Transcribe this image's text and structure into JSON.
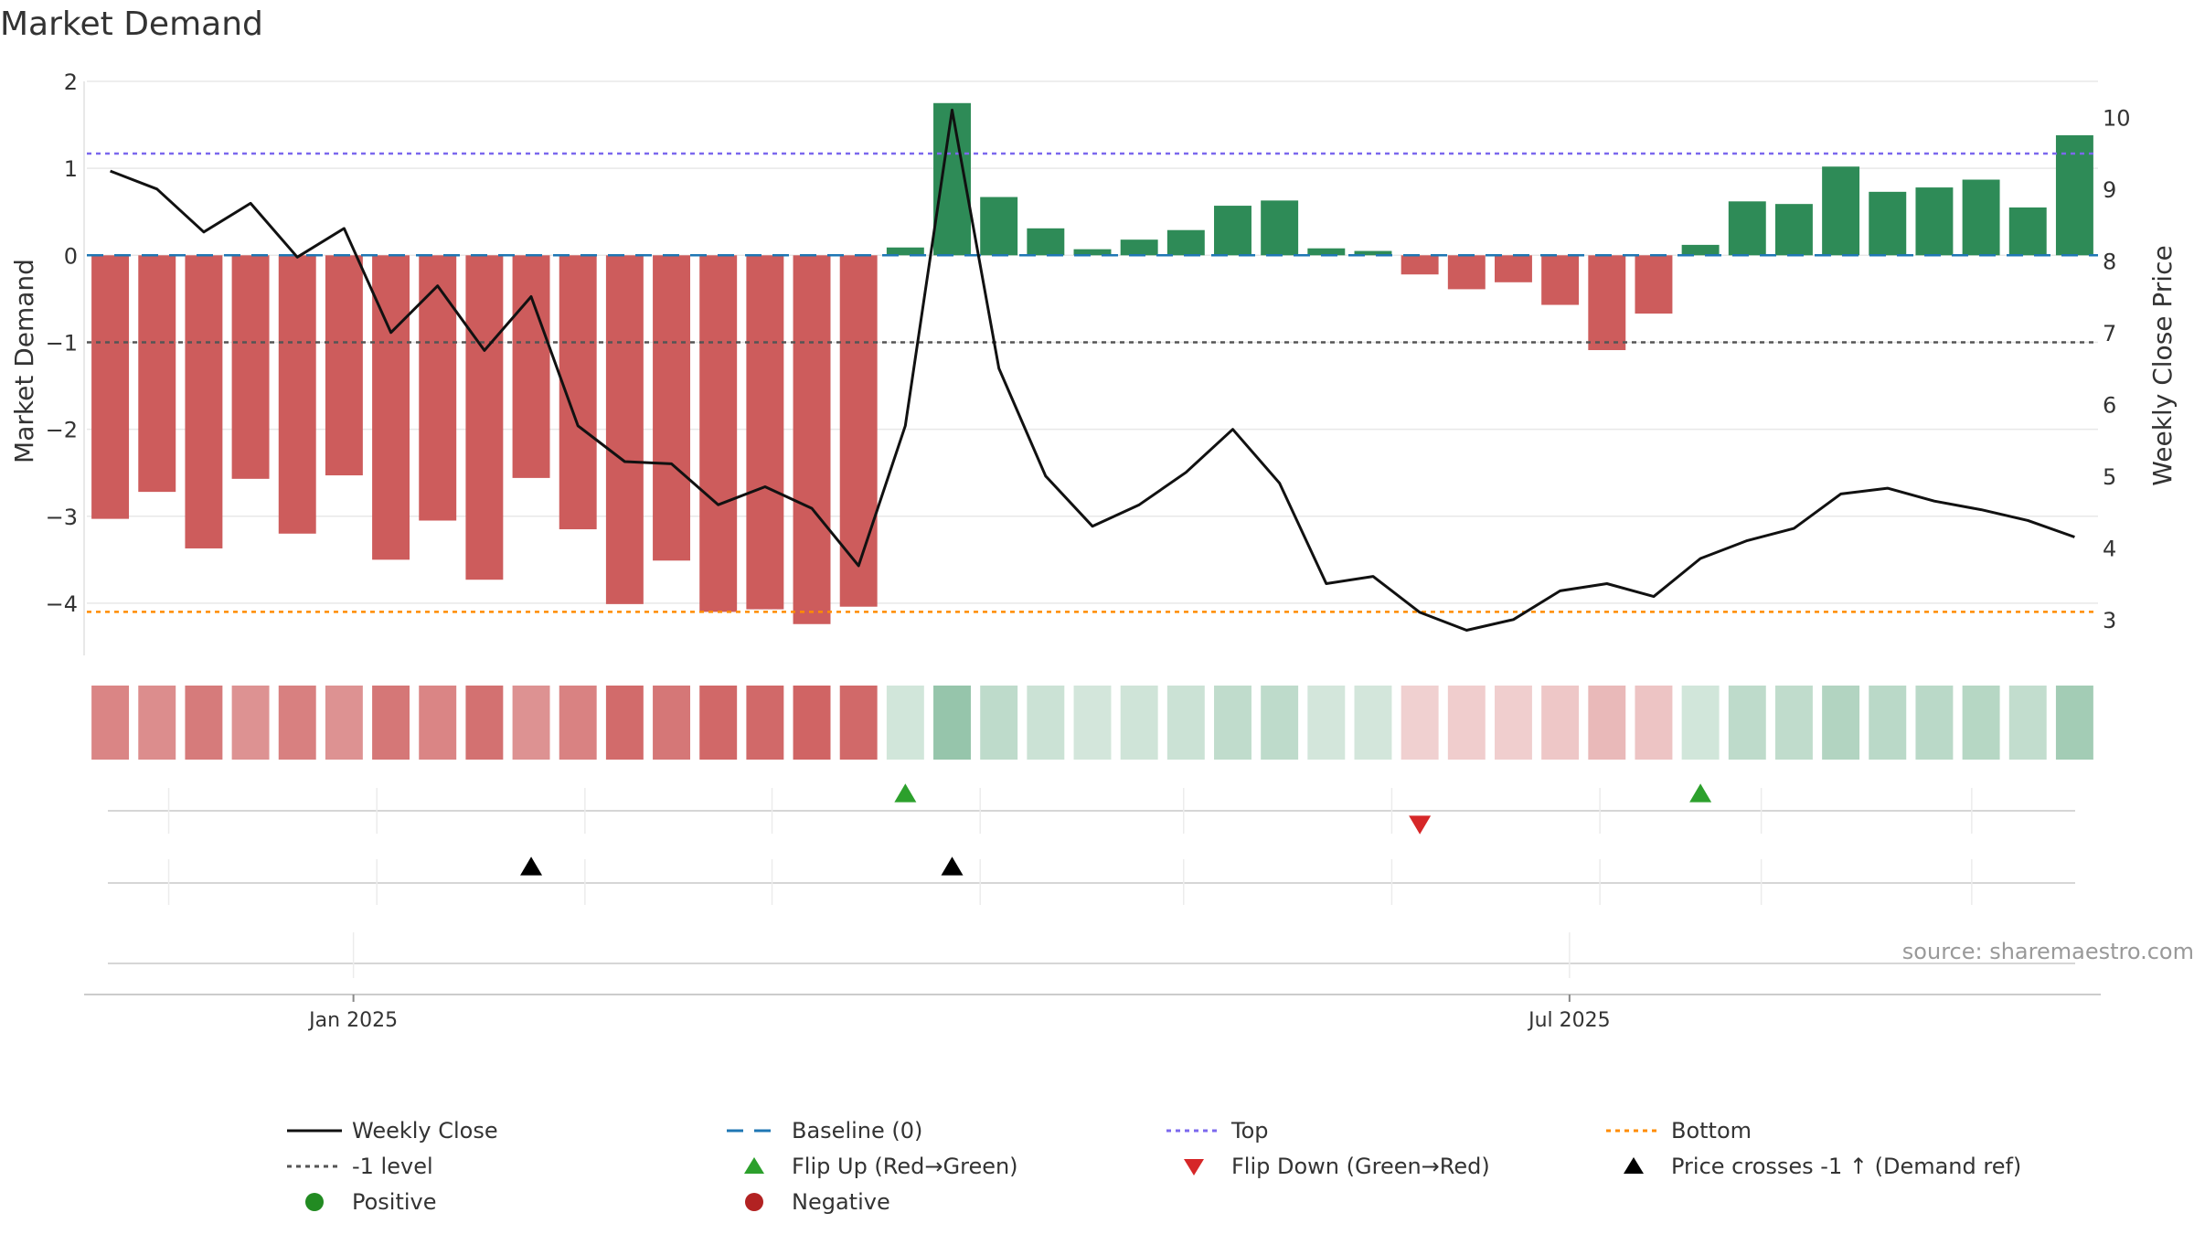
{
  "chart_data": {
    "type": "bar",
    "title": "Market Demand",
    "ylabel_left": "Market Demand",
    "ylabel_right": "Weekly Close Price",
    "source": "source: sharemaestro.com",
    "ylim_left": [
      -4.6,
      2.0
    ],
    "ylim_right": [
      2.5,
      10.5
    ],
    "left_ticks": [
      {
        "value": 2,
        "label": "2"
      },
      {
        "value": 1,
        "label": "1"
      },
      {
        "value": 0,
        "label": "0"
      },
      {
        "value": -1,
        "label": "−1"
      },
      {
        "value": -2,
        "label": "−2"
      },
      {
        "value": -3,
        "label": "−3"
      },
      {
        "value": -4,
        "label": "−4"
      }
    ],
    "right_ticks": [
      {
        "value": 10,
        "label": "10"
      },
      {
        "value": 9,
        "label": "9"
      },
      {
        "value": 8,
        "label": "8"
      },
      {
        "value": 7,
        "label": "7"
      },
      {
        "value": 6,
        "label": "6"
      },
      {
        "value": 5,
        "label": "5"
      },
      {
        "value": 4,
        "label": "4"
      },
      {
        "value": 3,
        "label": "3"
      }
    ],
    "x_range_weeks": [
      -0.5,
      42.5
    ],
    "x_ticks": [
      {
        "week": 5.2,
        "label": "Jan 2025"
      },
      {
        "week": 31.2,
        "label": "Jul 2025"
      }
    ],
    "minor_x_weeks": [
      1.25,
      5.7,
      10.15,
      14.15,
      18.6,
      22.95,
      27.4,
      31.85,
      35.3,
      39.8
    ],
    "demand": [
      -3.03,
      -2.72,
      -3.37,
      -2.57,
      -3.2,
      -2.53,
      -3.5,
      -3.05,
      -3.73,
      -2.56,
      -3.15,
      -4.01,
      -3.51,
      -4.1,
      -4.07,
      -4.24,
      -4.04,
      0.09,
      1.75,
      0.67,
      0.31,
      0.07,
      0.18,
      0.29,
      0.57,
      0.63,
      0.08,
      0.05,
      -0.22,
      -0.39,
      -0.31,
      -0.57,
      -1.09,
      -0.67,
      0.12,
      0.62,
      0.59,
      1.02,
      0.73,
      0.78,
      0.87,
      0.55,
      1.38
    ],
    "weekly_close": [
      9.25,
      9.0,
      8.4,
      8.8,
      8.05,
      8.45,
      7.0,
      7.65,
      6.75,
      7.5,
      5.7,
      5.2,
      5.17,
      4.6,
      4.85,
      4.55,
      3.75,
      5.7,
      10.1,
      6.5,
      5.0,
      4.3,
      4.6,
      5.05,
      5.65,
      4.9,
      3.5,
      3.6,
      3.1,
      2.85,
      3.0,
      3.4,
      3.5,
      3.32,
      3.85,
      4.1,
      4.27,
      4.75,
      4.83,
      4.65,
      4.53,
      4.38,
      4.15
    ],
    "baseline": 0,
    "top": 1.17,
    "bottom": -4.1,
    "minus_one_level": -1,
    "flip_up_weeks": [
      17,
      34
    ],
    "flip_down_weeks": [
      28
    ],
    "price_cross_weeks": [
      9,
      18
    ],
    "colors": {
      "positive_bar": "#2e8b57",
      "negative_bar": "#cd5c5c",
      "weekly_close": "#111111",
      "baseline": "#1f77b4",
      "top": "#7b68ee",
      "bottom": "#ff8c00",
      "minus_one": "#555555",
      "flip_up": "#2ca02c",
      "flip_down": "#d62728",
      "price_cross": "#000000",
      "positive_dot": "#228b22",
      "negative_dot": "#b22222"
    },
    "legend": [
      {
        "key": "weekly_close",
        "label": "Weekly Close",
        "symbol": "solid-line",
        "color": "#111111"
      },
      {
        "key": "baseline",
        "label": "Baseline (0)",
        "symbol": "dashed-line",
        "color": "#1f77b4"
      },
      {
        "key": "top",
        "label": "Top",
        "symbol": "dotted-line",
        "color": "#7b68ee"
      },
      {
        "key": "bottom",
        "label": "Bottom",
        "symbol": "dotted-line",
        "color": "#ff8c00"
      },
      {
        "key": "minus_one",
        "label": "-1 level",
        "symbol": "dotted-line",
        "color": "#555555"
      },
      {
        "key": "flip_up",
        "label": "Flip Up (Red→Green)",
        "symbol": "triangle-up",
        "color": "#2ca02c"
      },
      {
        "key": "flip_down",
        "label": "Flip Down (Green→Red)",
        "symbol": "triangle-down",
        "color": "#d62728"
      },
      {
        "key": "price_cross",
        "label": "Price crosses -1 ↑ (Demand ref)",
        "symbol": "triangle-up",
        "color": "#000000"
      },
      {
        "key": "positive",
        "label": "Positive",
        "symbol": "dot",
        "color": "#228b22"
      },
      {
        "key": "negative",
        "label": "Negative",
        "symbol": "dot",
        "color": "#b22222"
      }
    ],
    "legend_placement": "bottom"
  }
}
